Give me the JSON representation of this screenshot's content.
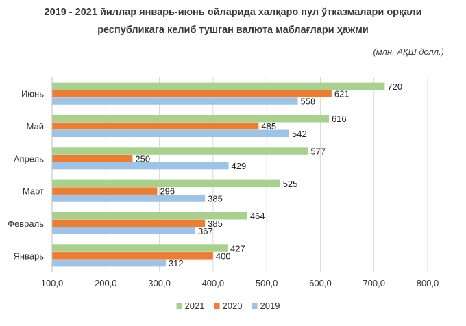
{
  "title": {
    "line1": "2019 - 2021 йиллар январь-июнь ойларида халқаро пул ўтказмалари орқали",
    "line2": "республикага келиб тушган валюта маблағлари ҳажми"
  },
  "units_label": "(млн. АҚШ долл.)",
  "chart_data": {
    "type": "bar",
    "orientation": "horizontal",
    "categories": [
      "Июнь",
      "Май",
      "Апрель",
      "Март",
      "Февраль",
      "Январь"
    ],
    "series": [
      {
        "name": "2021",
        "color": "#a9d18e",
        "values": [
          720,
          616,
          577,
          525,
          464,
          427
        ]
      },
      {
        "name": "2020",
        "color": "#ed7d31",
        "values": [
          621,
          485,
          250,
          296,
          385,
          400
        ]
      },
      {
        "name": "2019",
        "color": "#9dc3e6",
        "values": [
          558,
          542,
          429,
          385,
          367,
          312
        ]
      }
    ],
    "xlim": [
      100,
      800
    ],
    "x_ticks": [
      "100,0",
      "200,0",
      "300,0",
      "400,0",
      "500,0",
      "600,0",
      "700,0",
      "800,0"
    ],
    "x_tick_values": [
      100,
      200,
      300,
      400,
      500,
      600,
      700,
      800
    ],
    "grid": "vertical",
    "legend_position": "bottom"
  }
}
